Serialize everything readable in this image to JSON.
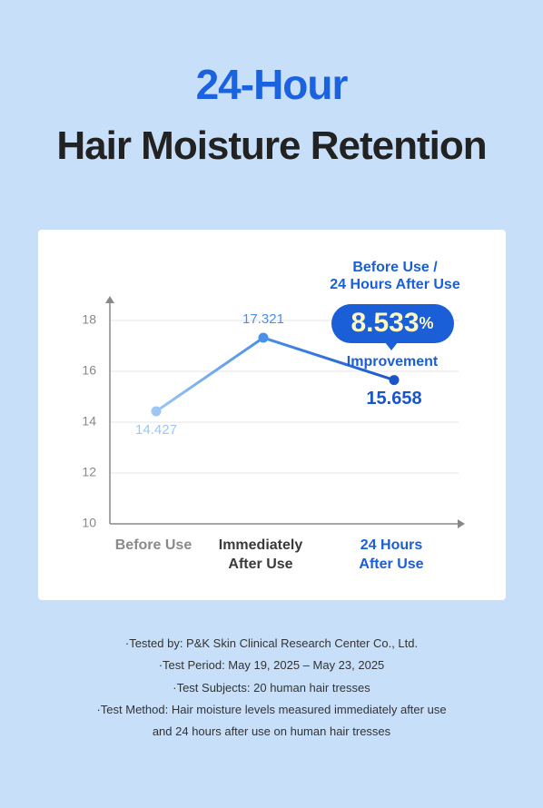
{
  "header": {
    "title_line1": "24-Hour",
    "title_line2": "Hair Moisture Retention"
  },
  "chart_data": {
    "type": "line",
    "categories": [
      "Before Use",
      "Immediately After Use",
      "24 Hours After Use"
    ],
    "category_colors": [
      "#8a8a8a",
      "#3a3a3a",
      "#1a5ed8"
    ],
    "values": [
      14.427,
      17.321,
      15.658
    ],
    "point_colors": [
      "#9ec6f5",
      "#4a8fe8",
      "#1a55cc"
    ],
    "ylim": [
      10,
      18.8
    ],
    "yticks": [
      10,
      12,
      14,
      16,
      18
    ],
    "grid": true,
    "annotation": {
      "title_lines": [
        "Before Use /",
        "24 Hours After Use"
      ],
      "value": "8.533",
      "unit": "%",
      "caption": "Improvement"
    }
  },
  "notes": [
    "·Tested by: P&K Skin Clinical Research Center Co., Ltd.",
    "·Test Period: May 19, 2025 – May 23, 2025",
    "·Test Subjects: 20 human hair tresses",
    "·Test Method: Hair moisture levels measured immediately after use",
    "and 24 hours after use on human hair tresses"
  ]
}
